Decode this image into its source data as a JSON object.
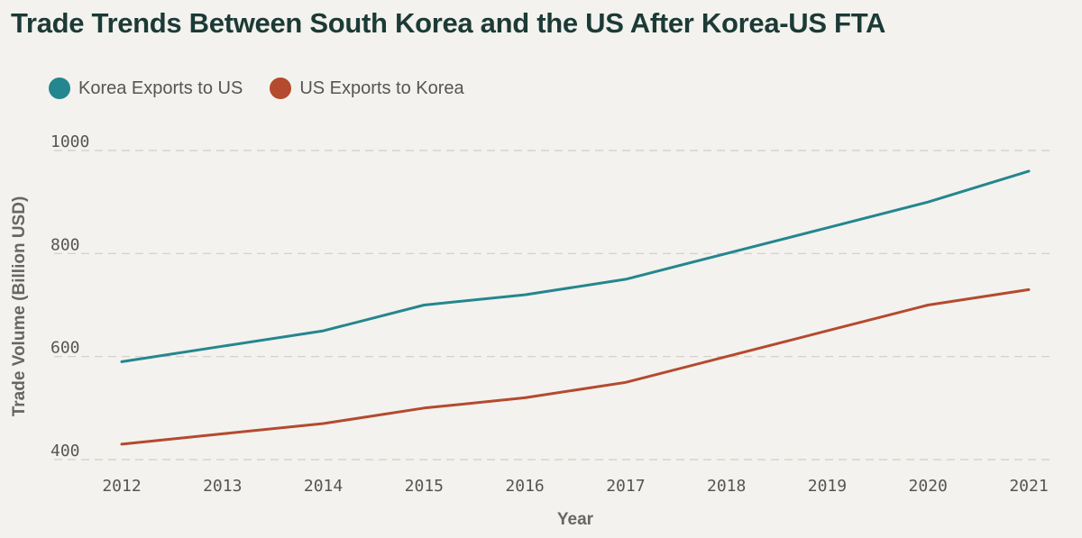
{
  "chart_data": {
    "type": "line",
    "title": "Trade Trends Between South Korea and the US After Korea-US FTA",
    "xlabel": "Year",
    "ylabel": "Trade Volume (Billion USD)",
    "x": [
      2012,
      2013,
      2014,
      2015,
      2016,
      2017,
      2018,
      2019,
      2020,
      2021
    ],
    "ylim": [
      400,
      1000
    ],
    "yticks": [
      400,
      600,
      800,
      1000
    ],
    "grid": true,
    "legend_position": "top-left",
    "series": [
      {
        "name": "Korea Exports to US",
        "color": "#24868f",
        "values": [
          590,
          620,
          650,
          700,
          720,
          750,
          800,
          850,
          900,
          960
        ]
      },
      {
        "name": "US Exports to Korea",
        "color": "#b44a2e",
        "values": [
          430,
          450,
          470,
          500,
          520,
          550,
          600,
          650,
          700,
          730
        ]
      }
    ]
  }
}
